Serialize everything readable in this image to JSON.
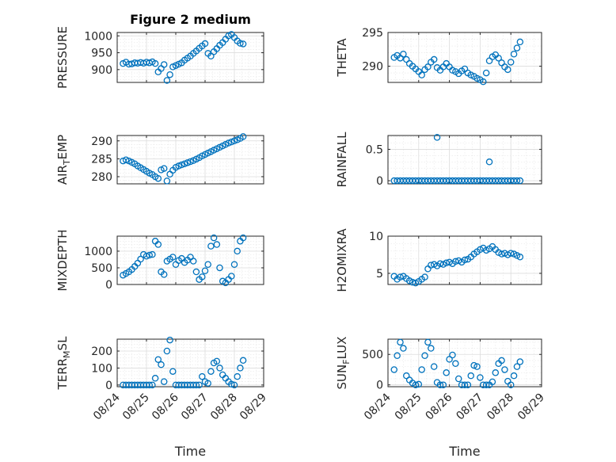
{
  "figure": {
    "title": "Figure 2 medium",
    "xlabel": "Time",
    "xtick_labels": [
      "08/24",
      "08/25",
      "08/26",
      "08/27",
      "08/28",
      "08/29"
    ]
  },
  "colors": {
    "marker": "#0072bd",
    "axis": "#262626"
  },
  "chart_data": [
    {
      "type": "scatter",
      "ylabel": "PRESSURE",
      "ylabel_sub": "",
      "ylabel_tail": "",
      "xlim": [
        0,
        5
      ],
      "ylim": [
        862,
        1010
      ],
      "yticks": [
        900,
        950,
        1000
      ],
      "grid": true,
      "marker": "circle",
      "x": [
        0.2,
        0.3,
        0.4,
        0.5,
        0.6,
        0.7,
        0.8,
        0.9,
        1.0,
        1.1,
        1.2,
        1.3,
        1.4,
        1.5,
        1.6,
        1.7,
        1.8,
        1.9,
        2.0,
        2.1,
        2.2,
        2.3,
        2.4,
        2.5,
        2.6,
        2.7,
        2.8,
        2.9,
        3.0,
        3.1,
        3.2,
        3.3,
        3.4,
        3.5,
        3.6,
        3.7,
        3.8,
        3.9,
        4.0,
        4.1,
        4.2,
        4.3
      ],
      "y": [
        918,
        922,
        916,
        917,
        920,
        919,
        921,
        919,
        922,
        920,
        923,
        918,
        893,
        903,
        915,
        868,
        885,
        908,
        912,
        916,
        920,
        928,
        934,
        940,
        948,
        955,
        963,
        970,
        977,
        948,
        940,
        953,
        962,
        972,
        980,
        990,
        1000,
        1004,
        995,
        985,
        978,
        976
      ]
    },
    {
      "type": "scatter",
      "ylabel": "THETA",
      "ylabel_sub": "",
      "ylabel_tail": "",
      "xlim": [
        0,
        5
      ],
      "ylim": [
        287.6,
        295
      ],
      "yticks": [
        290,
        295
      ],
      "grid": true,
      "marker": "circle",
      "x": [
        0.2,
        0.3,
        0.4,
        0.5,
        0.6,
        0.7,
        0.8,
        0.9,
        1.0,
        1.1,
        1.2,
        1.3,
        1.4,
        1.5,
        1.6,
        1.7,
        1.8,
        1.9,
        2.0,
        2.1,
        2.2,
        2.3,
        2.4,
        2.5,
        2.6,
        2.7,
        2.8,
        2.9,
        3.0,
        3.1,
        3.2,
        3.3,
        3.4,
        3.5,
        3.6,
        3.7,
        3.8,
        3.9,
        4.0,
        4.1,
        4.2,
        4.3
      ],
      "y": [
        291.3,
        291.6,
        291.2,
        291.8,
        291.0,
        290.4,
        290.0,
        289.6,
        289.2,
        288.7,
        289.5,
        289.9,
        290.6,
        291.0,
        289.8,
        289.4,
        289.9,
        290.4,
        289.9,
        289.4,
        289.2,
        288.9,
        289.3,
        289.6,
        289.0,
        288.7,
        288.5,
        288.2,
        288.0,
        287.7,
        289.0,
        290.8,
        291.4,
        291.7,
        291.2,
        290.5,
        289.9,
        289.5,
        290.6,
        291.8,
        292.7,
        293.6
      ]
    },
    {
      "type": "scatter",
      "ylabel": "AIR",
      "ylabel_sub": "T",
      "ylabel_tail": "EMP",
      "xlim": [
        0,
        5
      ],
      "ylim": [
        278,
        291.5
      ],
      "yticks": [
        280,
        285,
        290
      ],
      "grid": true,
      "marker": "circle",
      "x": [
        0.2,
        0.3,
        0.4,
        0.5,
        0.6,
        0.7,
        0.8,
        0.9,
        1.0,
        1.1,
        1.2,
        1.3,
        1.4,
        1.5,
        1.6,
        1.7,
        1.8,
        1.9,
        2.0,
        2.1,
        2.2,
        2.3,
        2.4,
        2.5,
        2.6,
        2.7,
        2.8,
        2.9,
        3.0,
        3.1,
        3.2,
        3.3,
        3.4,
        3.5,
        3.6,
        3.7,
        3.8,
        3.9,
        4.0,
        4.1,
        4.2,
        4.3
      ],
      "y": [
        284.4,
        284.7,
        284.4,
        284.0,
        283.6,
        283.0,
        282.5,
        282.0,
        281.5,
        281.0,
        280.6,
        280.0,
        279.5,
        281.9,
        282.3,
        278.8,
        280.7,
        281.8,
        282.6,
        283.0,
        283.3,
        283.6,
        283.9,
        284.2,
        284.5,
        284.9,
        285.3,
        285.8,
        286.2,
        286.6,
        287.0,
        287.4,
        287.8,
        288.2,
        288.6,
        289.0,
        289.4,
        289.7,
        290.0,
        290.3,
        290.7,
        291.2
      ]
    },
    {
      "type": "scatter",
      "ylabel": "RAINFALL",
      "ylabel_sub": "",
      "ylabel_tail": "",
      "xlim": [
        0,
        5
      ],
      "ylim": [
        -0.05,
        0.72
      ],
      "yticks": [
        0,
        0.5
      ],
      "grid": true,
      "marker": "circle",
      "x": [
        0.2,
        0.3,
        0.4,
        0.5,
        0.6,
        0.7,
        0.8,
        0.9,
        1.0,
        1.1,
        1.2,
        1.3,
        1.4,
        1.5,
        1.6,
        1.7,
        1.8,
        1.9,
        2.0,
        2.1,
        2.2,
        2.3,
        2.4,
        2.5,
        2.6,
        2.7,
        2.8,
        2.9,
        3.0,
        3.1,
        3.2,
        3.3,
        3.4,
        3.5,
        3.6,
        3.7,
        3.8,
        3.9,
        4.0,
        4.1,
        4.2,
        4.3,
        1.6,
        3.3
      ],
      "y": [
        0,
        0,
        0,
        0,
        0,
        0,
        0,
        0,
        0,
        0,
        0,
        0,
        0,
        0,
        0,
        0,
        0,
        0,
        0,
        0,
        0,
        0,
        0,
        0,
        0,
        0,
        0,
        0,
        0,
        0,
        0,
        0,
        0,
        0,
        0,
        0,
        0,
        0,
        0,
        0,
        0,
        0,
        0.69,
        0.3
      ]
    },
    {
      "type": "scatter",
      "ylabel": "MIXDEPTH",
      "ylabel_sub": "",
      "ylabel_tail": "",
      "xlim": [
        0,
        5
      ],
      "ylim": [
        0,
        1450
      ],
      "yticks": [
        0,
        500,
        1000
      ],
      "grid": true,
      "marker": "circle",
      "x": [
        0.2,
        0.3,
        0.4,
        0.5,
        0.6,
        0.7,
        0.8,
        0.9,
        1.0,
        1.1,
        1.2,
        1.3,
        1.4,
        1.5,
        1.6,
        1.7,
        1.8,
        1.9,
        2.0,
        2.1,
        2.2,
        2.3,
        2.4,
        2.5,
        2.6,
        2.7,
        2.8,
        2.9,
        3.0,
        3.1,
        3.2,
        3.3,
        3.4,
        3.5,
        3.6,
        3.7,
        3.8,
        3.9,
        4.0,
        4.1,
        4.2,
        4.3
      ],
      "y": [
        280,
        330,
        380,
        450,
        540,
        640,
        760,
        900,
        850,
        880,
        900,
        1300,
        1200,
        380,
        300,
        700,
        760,
        820,
        600,
        720,
        780,
        660,
        730,
        820,
        700,
        380,
        150,
        230,
        410,
        600,
        1150,
        1400,
        1200,
        500,
        100,
        50,
        150,
        250,
        600,
        1000,
        1300,
        1400
      ]
    },
    {
      "type": "scatter",
      "ylabel": "H2OMIXRA",
      "ylabel_sub": "",
      "ylabel_tail": "",
      "xlim": [
        0,
        5
      ],
      "ylim": [
        3.5,
        10
      ],
      "yticks": [
        5,
        10
      ],
      "grid": true,
      "marker": "circle",
      "x": [
        0.2,
        0.3,
        0.4,
        0.5,
        0.6,
        0.7,
        0.8,
        0.9,
        1.0,
        1.1,
        1.2,
        1.3,
        1.4,
        1.5,
        1.6,
        1.7,
        1.8,
        1.9,
        2.0,
        2.1,
        2.2,
        2.3,
        2.4,
        2.5,
        2.6,
        2.7,
        2.8,
        2.9,
        3.0,
        3.1,
        3.2,
        3.3,
        3.4,
        3.5,
        3.6,
        3.7,
        3.8,
        3.9,
        4.0,
        4.1,
        4.2,
        4.3
      ],
      "y": [
        4.6,
        4.2,
        4.5,
        4.6,
        4.3,
        4.0,
        3.8,
        3.7,
        3.9,
        4.2,
        4.5,
        5.6,
        6.1,
        6.2,
        6.0,
        6.3,
        6.2,
        6.4,
        6.5,
        6.3,
        6.6,
        6.7,
        6.5,
        6.8,
        6.9,
        7.2,
        7.6,
        7.9,
        8.2,
        8.4,
        8.1,
        8.3,
        8.6,
        8.2,
        7.8,
        7.6,
        7.7,
        7.5,
        7.7,
        7.6,
        7.4,
        7.2
      ]
    },
    {
      "type": "scatter",
      "ylabel": "TERR",
      "ylabel_sub": "M",
      "ylabel_tail": "SL",
      "xlim": [
        0,
        5
      ],
      "ylim": [
        -10,
        270
      ],
      "yticks": [
        0,
        100,
        200
      ],
      "grid": true,
      "marker": "circle",
      "x": [
        0.2,
        0.3,
        0.4,
        0.5,
        0.6,
        0.7,
        0.8,
        0.9,
        1.0,
        1.1,
        1.2,
        1.3,
        1.4,
        1.5,
        1.6,
        1.7,
        1.8,
        1.9,
        2.0,
        2.1,
        2.2,
        2.3,
        2.4,
        2.5,
        2.6,
        2.7,
        2.8,
        2.9,
        3.0,
        3.1,
        3.2,
        3.3,
        3.4,
        3.5,
        3.6,
        3.7,
        3.8,
        3.9,
        4.0,
        4.1,
        4.2,
        4.3
      ],
      "y": [
        0,
        0,
        0,
        0,
        0,
        0,
        0,
        0,
        0,
        0,
        0,
        40,
        150,
        120,
        20,
        200,
        265,
        80,
        0,
        0,
        0,
        0,
        0,
        0,
        0,
        0,
        0,
        50,
        20,
        10,
        80,
        130,
        140,
        100,
        60,
        40,
        20,
        5,
        0,
        50,
        100,
        145
      ]
    },
    {
      "type": "scatter",
      "ylabel": "SUN",
      "ylabel_sub": "F",
      "ylabel_tail": "LUX",
      "xlim": [
        0,
        5
      ],
      "ylim": [
        -30,
        750
      ],
      "yticks": [
        0,
        500
      ],
      "grid": true,
      "marker": "circle",
      "x": [
        0.2,
        0.3,
        0.4,
        0.5,
        0.6,
        0.7,
        0.8,
        0.9,
        1.0,
        1.1,
        1.2,
        1.3,
        1.4,
        1.5,
        1.6,
        1.7,
        1.8,
        1.9,
        2.0,
        2.1,
        2.2,
        2.3,
        2.4,
        2.5,
        2.6,
        2.7,
        2.8,
        2.9,
        3.0,
        3.1,
        3.2,
        3.3,
        3.4,
        3.5,
        3.6,
        3.7,
        3.8,
        3.9,
        4.0,
        4.1,
        4.2,
        4.3
      ],
      "y": [
        250,
        480,
        700,
        600,
        150,
        80,
        30,
        0,
        10,
        250,
        480,
        700,
        600,
        300,
        40,
        0,
        0,
        200,
        420,
        490,
        350,
        100,
        0,
        0,
        0,
        150,
        320,
        300,
        120,
        0,
        0,
        0,
        50,
        200,
        350,
        400,
        250,
        60,
        0,
        150,
        300,
        380
      ]
    }
  ]
}
